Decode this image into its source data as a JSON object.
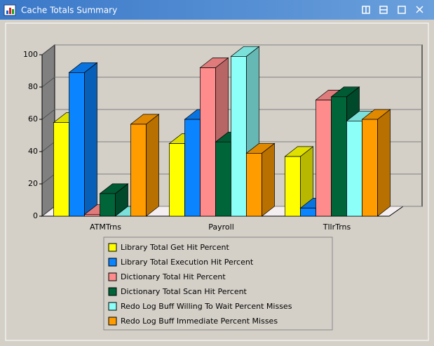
{
  "window": {
    "title": "Cache Totals Summary"
  },
  "chart_data": {
    "type": "bar3d",
    "categories": [
      "ATMTrns",
      "Payroll",
      "TllrTrns"
    ],
    "series": [
      {
        "name": "Library Total Get Hit Percent",
        "color": "#ffff00",
        "values": [
          58,
          45,
          37
        ]
      },
      {
        "name": "Library Total Execution Hit Percent",
        "color": "#0a84ff",
        "values": [
          89,
          60,
          5
        ]
      },
      {
        "name": "Dictionary Total Hit Percent",
        "color": "#ff8c8c",
        "values": [
          1,
          92,
          72
        ]
      },
      {
        "name": "Dictionary Total Scan Hit Percent",
        "color": "#00663a",
        "values": [
          14,
          46,
          74
        ]
      },
      {
        "name": "Redo Log Buff Willing To Wait Percent Misses",
        "color": "#8cfff8",
        "values": [
          0,
          99,
          59
        ]
      },
      {
        "name": "Redo Log Buff Immediate Percent Misses",
        "color": "#ff9c00",
        "values": [
          57,
          39,
          60
        ]
      }
    ],
    "ylim": [
      0,
      100
    ],
    "yticks": [
      0,
      20,
      40,
      60,
      80,
      100
    ],
    "grid": true,
    "legend": "bottom"
  }
}
